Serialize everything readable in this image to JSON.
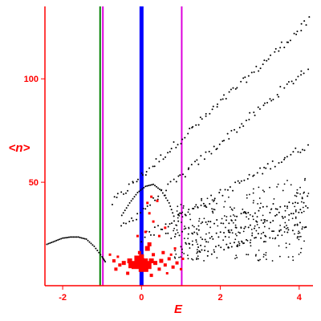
{
  "chart_data": {
    "type": "scatter",
    "xlabel": "E",
    "ylabel": "<n>",
    "xlim": [
      -2.45,
      4.35
    ],
    "ylim": [
      0,
      135
    ],
    "x_ticks": [
      -2,
      0,
      2,
      4
    ],
    "y_ticks": [
      50,
      100
    ],
    "x_tick_labels": [
      "-2",
      "0",
      "2",
      "4"
    ],
    "y_tick_labels": [
      "50",
      "100"
    ],
    "grid": false,
    "legend": "none",
    "vertical_lines": [
      {
        "x": -1.05,
        "color": "#008000"
      },
      {
        "x": -0.98,
        "color": "#dd00dd"
      },
      {
        "x": 0.0,
        "color": "#0000ff",
        "thick": true
      },
      {
        "x": 1.02,
        "color": "#dd00dd"
      }
    ],
    "series": [
      {
        "color": "#000000",
        "note_points": "black dot bands",
        "bands": [
          {
            "x0": -0.75,
            "x1": 4.25,
            "y0": 40,
            "y1": 128,
            "n": 90
          },
          {
            "x0": -0.5,
            "x1": 4.2,
            "y0": 28,
            "y1": 105,
            "n": 80
          },
          {
            "x0": 0.0,
            "x1": 4.2,
            "y0": 23,
            "y1": 68,
            "n": 70
          },
          {
            "x0": 0.6,
            "x1": 4.2,
            "y0": 24,
            "y1": 42,
            "n": 50
          },
          {
            "x0": 1.0,
            "x1": 4.2,
            "y0": 18,
            "y1": 38,
            "n": 55
          },
          {
            "x0": 1.4,
            "x1": 4.2,
            "y0": 15,
            "y1": 30,
            "n": 45
          }
        ],
        "arc": [
          [
            -2.4,
            20
          ],
          [
            -2.2,
            21.5
          ],
          [
            -2.0,
            23
          ],
          [
            -1.8,
            23.5
          ],
          [
            -1.6,
            23.5
          ],
          [
            -1.4,
            22.5
          ],
          [
            -1.2,
            19
          ],
          [
            -1.0,
            14
          ],
          [
            -0.9,
            11
          ]
        ],
        "arc2": [
          [
            -0.5,
            34
          ],
          [
            -0.3,
            40
          ],
          [
            -0.1,
            45
          ],
          [
            0.1,
            48
          ],
          [
            0.3,
            49
          ],
          [
            0.5,
            46
          ],
          [
            0.7,
            40
          ],
          [
            0.85,
            32
          ]
        ]
      },
      {
        "color": "#ff0000",
        "points": [
          [
            -0.25,
            10,
            4
          ],
          [
            -0.15,
            10,
            5
          ],
          [
            -0.05,
            11,
            6
          ],
          [
            0.05,
            9,
            6
          ],
          [
            0.15,
            10,
            5
          ],
          [
            -0.3,
            12,
            3
          ],
          [
            0.25,
            12,
            3
          ],
          [
            -0.1,
            13,
            4
          ],
          [
            0.0,
            14,
            3
          ],
          [
            0.1,
            12,
            3
          ],
          [
            -0.45,
            11,
            2.5
          ],
          [
            0.35,
            11,
            2.5
          ],
          [
            -0.55,
            10,
            2
          ],
          [
            0.5,
            12,
            2.5
          ],
          [
            -0.7,
            12,
            2
          ],
          [
            0.6,
            10,
            2
          ],
          [
            0.7,
            13,
            2
          ],
          [
            0.8,
            9,
            2
          ],
          [
            0.9,
            11,
            2
          ],
          [
            -0.65,
            8,
            2
          ],
          [
            0.45,
            8,
            2
          ],
          [
            0.15,
            18,
            3
          ],
          [
            0.2,
            20,
            2.5
          ],
          [
            -0.05,
            16,
            2
          ],
          [
            0.3,
            15,
            2
          ],
          [
            0.55,
            16,
            2
          ],
          [
            0.75,
            15,
            1.5
          ],
          [
            0.65,
            6,
            1.5
          ],
          [
            -0.35,
            6,
            2
          ],
          [
            0.25,
            5,
            2
          ],
          [
            0.1,
            26,
            1.5
          ],
          [
            0.45,
            24,
            1.5
          ],
          [
            0.3,
            31,
            1.5
          ],
          [
            0.6,
            28,
            1.5
          ],
          [
            0.2,
            35,
            1.5
          ],
          [
            0.15,
            40,
            1.5
          ],
          [
            0.25,
            43,
            1.5
          ],
          [
            0.4,
            41,
            1.5
          ],
          [
            -0.1,
            24,
            1.5
          ],
          [
            -0.8,
            15,
            1.5
          ],
          [
            -0.6,
            14,
            1.5
          ],
          [
            1.0,
            8,
            1.5
          ],
          [
            1.05,
            13,
            1.5
          ],
          [
            0.85,
            18,
            1.5
          ]
        ]
      }
    ]
  }
}
